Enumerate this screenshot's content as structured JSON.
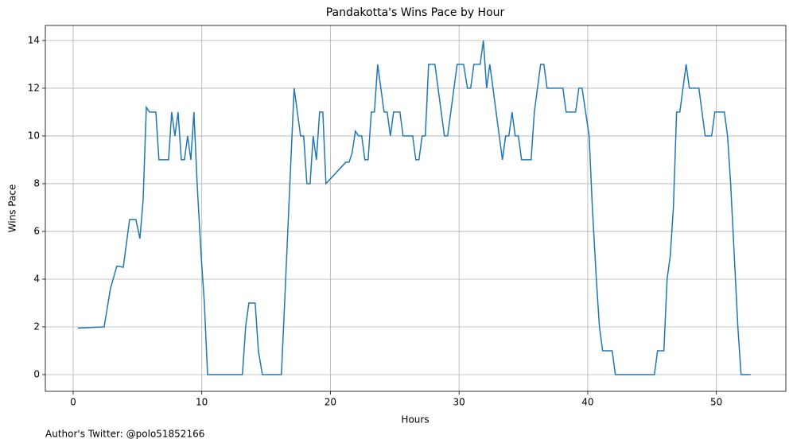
{
  "chart_data": {
    "type": "line",
    "title": "Pandakotta's Wins Pace by Hour",
    "x_label": "Hours",
    "y_label": "Wins Pace",
    "footnote": "Author's Twitter: @polo51852166",
    "x": [
      0.37,
      2.41,
      2.9,
      3.4,
      3.9,
      4.39,
      4.88,
      5.19,
      5.44,
      5.69,
      5.93,
      6.43,
      6.67,
      7.42,
      7.66,
      7.91,
      8.16,
      8.41,
      8.65,
      8.9,
      9.15,
      9.39,
      9.64,
      9.95,
      10.2,
      10.45,
      13.16,
      13.41,
      13.66,
      14.15,
      14.4,
      14.71,
      16.19,
      16.44,
      16.93,
      17.18,
      17.68,
      17.92,
      18.17,
      18.42,
      18.66,
      18.91,
      19.16,
      19.41,
      19.65,
      21.2,
      21.45,
      21.69,
      21.94,
      22.19,
      22.43,
      22.68,
      22.93,
      23.18,
      23.42,
      23.67,
      23.92,
      24.17,
      24.41,
      24.66,
      24.91,
      25.4,
      25.65,
      26.39,
      26.64,
      26.88,
      27.13,
      27.38,
      27.63,
      28.12,
      28.86,
      29.11,
      29.85,
      30.35,
      30.65,
      30.9,
      31.15,
      31.64,
      31.89,
      32.14,
      32.39,
      33.37,
      33.62,
      33.87,
      34.12,
      34.36,
      34.61,
      34.86,
      35.6,
      35.85,
      36.34,
      36.59,
      36.84,
      38.07,
      38.32,
      39.06,
      39.31,
      39.56,
      40.11,
      40.36,
      40.67,
      40.91,
      41.16,
      41.9,
      42.15,
      45.18,
      45.43,
      45.92,
      46.17,
      46.42,
      46.66,
      46.91,
      47.16,
      47.65,
      47.9,
      48.64,
      49.13,
      49.63,
      49.88,
      50.62,
      50.87,
      51.11,
      51.67,
      51.92,
      52.66
    ],
    "series": [
      {
        "name": "Wins Pace",
        "color": "#1f77b4",
        "values": [
          1.95,
          2,
          3.6,
          4.55,
          4.5,
          6.5,
          6.5,
          5.7,
          7.3,
          11.2,
          11,
          11,
          9,
          9,
          11,
          10,
          11,
          9,
          9,
          10,
          9,
          11,
          8,
          5,
          3,
          0,
          0,
          2,
          3,
          3,
          1,
          0,
          0,
          3,
          9,
          12,
          10,
          10,
          8,
          8,
          10,
          9,
          11,
          11,
          8,
          8.9,
          8.9,
          9.3,
          10.2,
          10,
          10,
          9,
          9,
          11,
          11,
          13,
          12,
          11,
          11,
          10,
          11,
          11,
          10,
          10,
          9,
          9,
          10,
          10,
          13,
          13,
          10,
          10,
          13,
          13,
          12,
          12,
          13,
          13,
          14,
          12,
          13,
          9,
          10,
          10,
          11,
          10,
          10,
          9,
          9,
          11,
          13,
          13,
          12,
          12,
          11,
          11,
          12,
          12,
          10,
          7,
          4,
          2,
          1,
          1,
          0,
          0,
          1,
          1,
          4,
          5,
          7,
          11,
          11,
          13,
          12,
          12,
          10,
          10,
          11,
          11,
          10,
          8,
          2,
          0,
          0
        ]
      }
    ],
    "xlim": [
      -2.16,
      55.4
    ],
    "ylim": [
      -0.7,
      14.63
    ],
    "xticks": [
      0,
      10,
      20,
      30,
      40,
      50
    ],
    "yticks": [
      0,
      2,
      4,
      6,
      8,
      10,
      12,
      14
    ],
    "grid": true
  }
}
